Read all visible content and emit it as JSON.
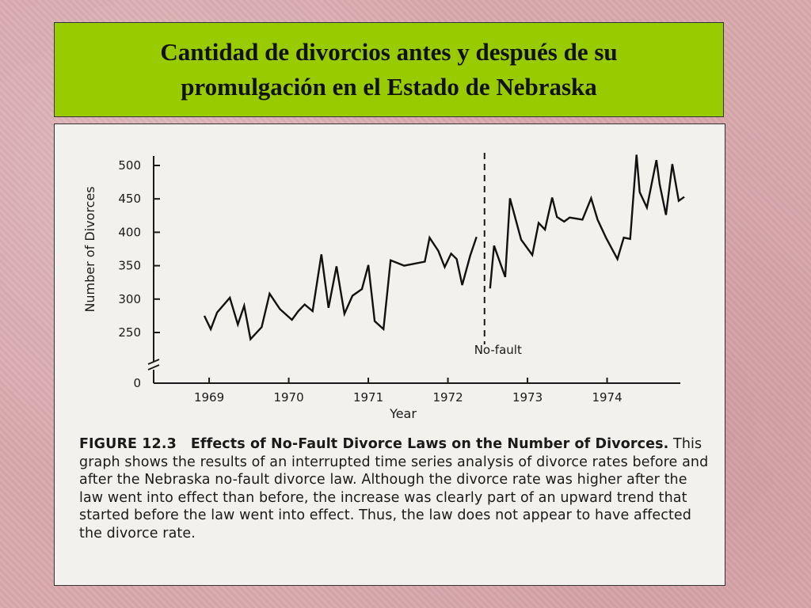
{
  "slide": {
    "title": "Cantidad de divorcios antes y después de su promulgación en el Estado de Nebraska"
  },
  "figure": {
    "label": "FIGURE 12.3",
    "heading": "Effects of No-Fault Divorce Laws on the Number of Divorces.",
    "body": "This graph shows the results of an interrupted time series analysis of divorce rates before and after the Nebraska no-fault divorce law. Although the divorce rate was higher after the law went into effect than before, the increase was clearly part of an upward trend that started before the law went into effect. Thus, the law does not appear to have affected the divorce rate."
  },
  "chart_data": {
    "type": "line",
    "title": "",
    "xlabel": "Year",
    "ylabel": "Number of Divorces",
    "xlim": [
      1968.85,
      1974.95
    ],
    "ylim": [
      235,
      510
    ],
    "yticks": [
      500,
      450,
      400,
      350,
      300,
      250
    ],
    "ytick_zero": "0",
    "axis_break": true,
    "xticks": [
      {
        "value": 1969.0,
        "label": "1969"
      },
      {
        "value": 1970.0,
        "label": "1970"
      },
      {
        "value": 1971.0,
        "label": "1971"
      },
      {
        "value": 1972.0,
        "label": "1972"
      },
      {
        "value": 1973.0,
        "label": "1973"
      },
      {
        "value": 1974.0,
        "label": "1974"
      }
    ],
    "intervention": {
      "x": 1972.46,
      "label": "No-fault",
      "style": "dashed"
    },
    "grid": false,
    "series": [
      {
        "segment": "before",
        "x": [
          1968.94,
          1969.02,
          1969.1,
          1969.26,
          1969.36,
          1969.44,
          1969.52,
          1969.66,
          1969.76,
          1969.89,
          1970.04,
          1970.12,
          1970.2,
          1970.3,
          1970.41,
          1970.5,
          1970.6,
          1970.7,
          1970.8,
          1970.92,
          1971.0,
          1971.08,
          1971.19,
          1971.28,
          1971.45,
          1971.71,
          1971.77,
          1971.88,
          1971.96,
          1972.04,
          1972.11,
          1972.18,
          1972.28,
          1972.36
        ],
        "y": [
          275,
          255,
          280,
          302,
          262,
          290,
          240,
          258,
          308,
          285,
          269,
          282,
          292,
          282,
          367,
          287,
          349,
          278,
          305,
          315,
          351,
          267,
          255,
          358,
          350,
          356,
          392,
          372,
          348,
          368,
          360,
          321,
          365,
          393
        ]
      },
      {
        "segment": "after",
        "x": [
          1972.53,
          1972.58,
          1972.72,
          1972.78,
          1972.92,
          1973.06,
          1973.14,
          1973.22,
          1973.31,
          1973.37,
          1973.46,
          1973.53,
          1973.69,
          1973.8,
          1973.88,
          1973.99,
          1974.13,
          1974.21,
          1974.29,
          1974.37,
          1974.41,
          1974.5,
          1974.62,
          1974.66,
          1974.74,
          1974.82,
          1974.9,
          1974.97
        ],
        "y": [
          316,
          380,
          333,
          451,
          389,
          366,
          414,
          404,
          452,
          423,
          416,
          422,
          419,
          451,
          419,
          391,
          360,
          392,
          390,
          516,
          460,
          437,
          508,
          472,
          426,
          502,
          447,
          453
        ]
      }
    ]
  }
}
